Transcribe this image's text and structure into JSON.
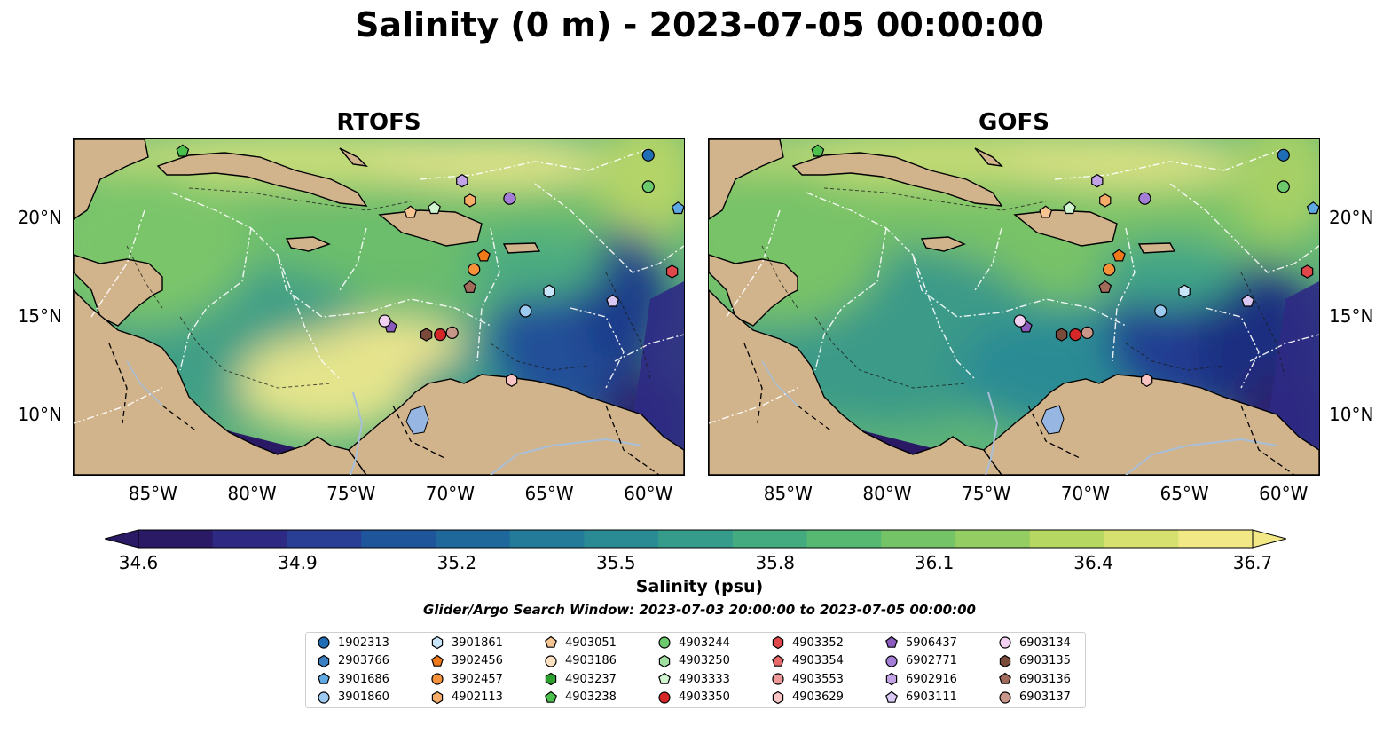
{
  "title": "Salinity (0 m) - 2023-07-05 00:00:00",
  "panels": [
    {
      "name": "RTOFS",
      "variant": "rtofs"
    },
    {
      "name": "GOFS",
      "variant": "gofs"
    }
  ],
  "axes": {
    "lon_ticks": [
      "85°W",
      "80°W",
      "75°W",
      "70°W",
      "65°W",
      "60°W"
    ],
    "lon_values": [
      -85,
      -80,
      -75,
      -70,
      -65,
      -60
    ],
    "lat_ticks": [
      "20°N",
      "15°N",
      "10°N"
    ],
    "lat_values": [
      20,
      15,
      10
    ],
    "lon_range": [
      -89,
      -58.2
    ],
    "lat_range": [
      7.0,
      24.0
    ]
  },
  "colorbar": {
    "label": "Salinity (psu)",
    "ticks": [
      "34.6",
      "34.9",
      "35.2",
      "35.5",
      "35.8",
      "36.1",
      "36.4",
      "36.7"
    ],
    "tick_values": [
      34.6,
      34.9,
      35.2,
      35.5,
      35.8,
      36.1,
      36.4,
      36.7
    ],
    "range": [
      34.6,
      36.7
    ],
    "colors": [
      "#2a1a66",
      "#2e2a84",
      "#283f95",
      "#1f559b",
      "#1f689b",
      "#247a99",
      "#2b8b94",
      "#359c8b",
      "#43ab7f",
      "#57b872",
      "#74c367",
      "#94cd61",
      "#b6d762",
      "#d6e06e",
      "#f2e886"
    ]
  },
  "search_window": "Glider/Argo Search Window: 2023-07-03 20:00:00 to 2023-07-05 00:00:00",
  "land_color": "#d2b48c",
  "lake_color": "#97b6e1",
  "floats": [
    {
      "id": "1902313",
      "marker": "circle",
      "color": "#1f6eb5",
      "lon": -60.0,
      "lat": 23.2
    },
    {
      "id": "2903766",
      "marker": "hexagon",
      "color": "#3a7fc1",
      "lon": null,
      "lat": null
    },
    {
      "id": "3901686",
      "marker": "pentagon",
      "color": "#5ea8e4",
      "lon": -58.5,
      "lat": 20.5
    },
    {
      "id": "3901860",
      "marker": "circle",
      "color": "#9ccaf1",
      "lon": -66.2,
      "lat": 15.3
    },
    {
      "id": "3901861",
      "marker": "hexagon",
      "color": "#c9e5fa",
      "lon": -65.0,
      "lat": 16.3
    },
    {
      "id": "3902456",
      "marker": "pentagon",
      "color": "#f07a1a",
      "lon": -68.3,
      "lat": 18.1
    },
    {
      "id": "3902457",
      "marker": "circle",
      "color": "#f5923a",
      "lon": -68.8,
      "lat": 17.4
    },
    {
      "id": "4902113",
      "marker": "hexagon",
      "color": "#f7ad6a",
      "lon": -69.0,
      "lat": 20.9
    },
    {
      "id": "4903051",
      "marker": "pentagon",
      "color": "#f6c592",
      "lon": -72.0,
      "lat": 20.3
    },
    {
      "id": "4903186",
      "marker": "circle",
      "color": "#fde0c0",
      "lon": null,
      "lat": null
    },
    {
      "id": "4903237",
      "marker": "hexagon",
      "color": "#2ca02c",
      "lon": null,
      "lat": null
    },
    {
      "id": "4903238",
      "marker": "pentagon",
      "color": "#4cc04c",
      "lon": -83.5,
      "lat": 23.4
    },
    {
      "id": "4903244",
      "marker": "circle",
      "color": "#6cc96c",
      "lon": -60.0,
      "lat": 21.6
    },
    {
      "id": "4903250",
      "marker": "hexagon",
      "color": "#a2e0a2",
      "lon": null,
      "lat": null
    },
    {
      "id": "4903333",
      "marker": "pentagon",
      "color": "#d0f5d0",
      "lon": -70.8,
      "lat": 20.5
    },
    {
      "id": "4903350",
      "marker": "circle",
      "color": "#d62728",
      "lon": -70.5,
      "lat": 14.1
    },
    {
      "id": "4903352",
      "marker": "hexagon",
      "color": "#e0474a",
      "lon": -58.8,
      "lat": 17.3
    },
    {
      "id": "4903354",
      "marker": "pentagon",
      "color": "#e8696a",
      "lon": null,
      "lat": null
    },
    {
      "id": "4903553",
      "marker": "circle",
      "color": "#f0999a",
      "lon": null,
      "lat": null
    },
    {
      "id": "4903629",
      "marker": "hexagon",
      "color": "#f8c4c4",
      "lon": -66.9,
      "lat": 11.8
    },
    {
      "id": "5906437",
      "marker": "pentagon",
      "color": "#8a5bbd",
      "lon": -73.0,
      "lat": 14.5
    },
    {
      "id": "6902771",
      "marker": "circle",
      "color": "#a47ed6",
      "lon": -67.0,
      "lat": 21.0
    },
    {
      "id": "6902916",
      "marker": "hexagon",
      "color": "#c1a3e6",
      "lon": -69.4,
      "lat": 21.9
    },
    {
      "id": "6903111",
      "marker": "pentagon",
      "color": "#d9c8f3",
      "lon": -61.8,
      "lat": 15.8
    },
    {
      "id": "6903134",
      "marker": "circle",
      "color": "#f1d0f1",
      "lon": -73.3,
      "lat": 14.8
    },
    {
      "id": "6903135",
      "marker": "hexagon",
      "color": "#7a4a3a",
      "lon": -71.2,
      "lat": 14.1
    },
    {
      "id": "6903136",
      "marker": "pentagon",
      "color": "#a06b5a",
      "lon": -69.0,
      "lat": 16.5
    },
    {
      "id": "6903137",
      "marker": "circle",
      "color": "#c9968a",
      "lon": -69.9,
      "lat": 14.2
    }
  ]
}
